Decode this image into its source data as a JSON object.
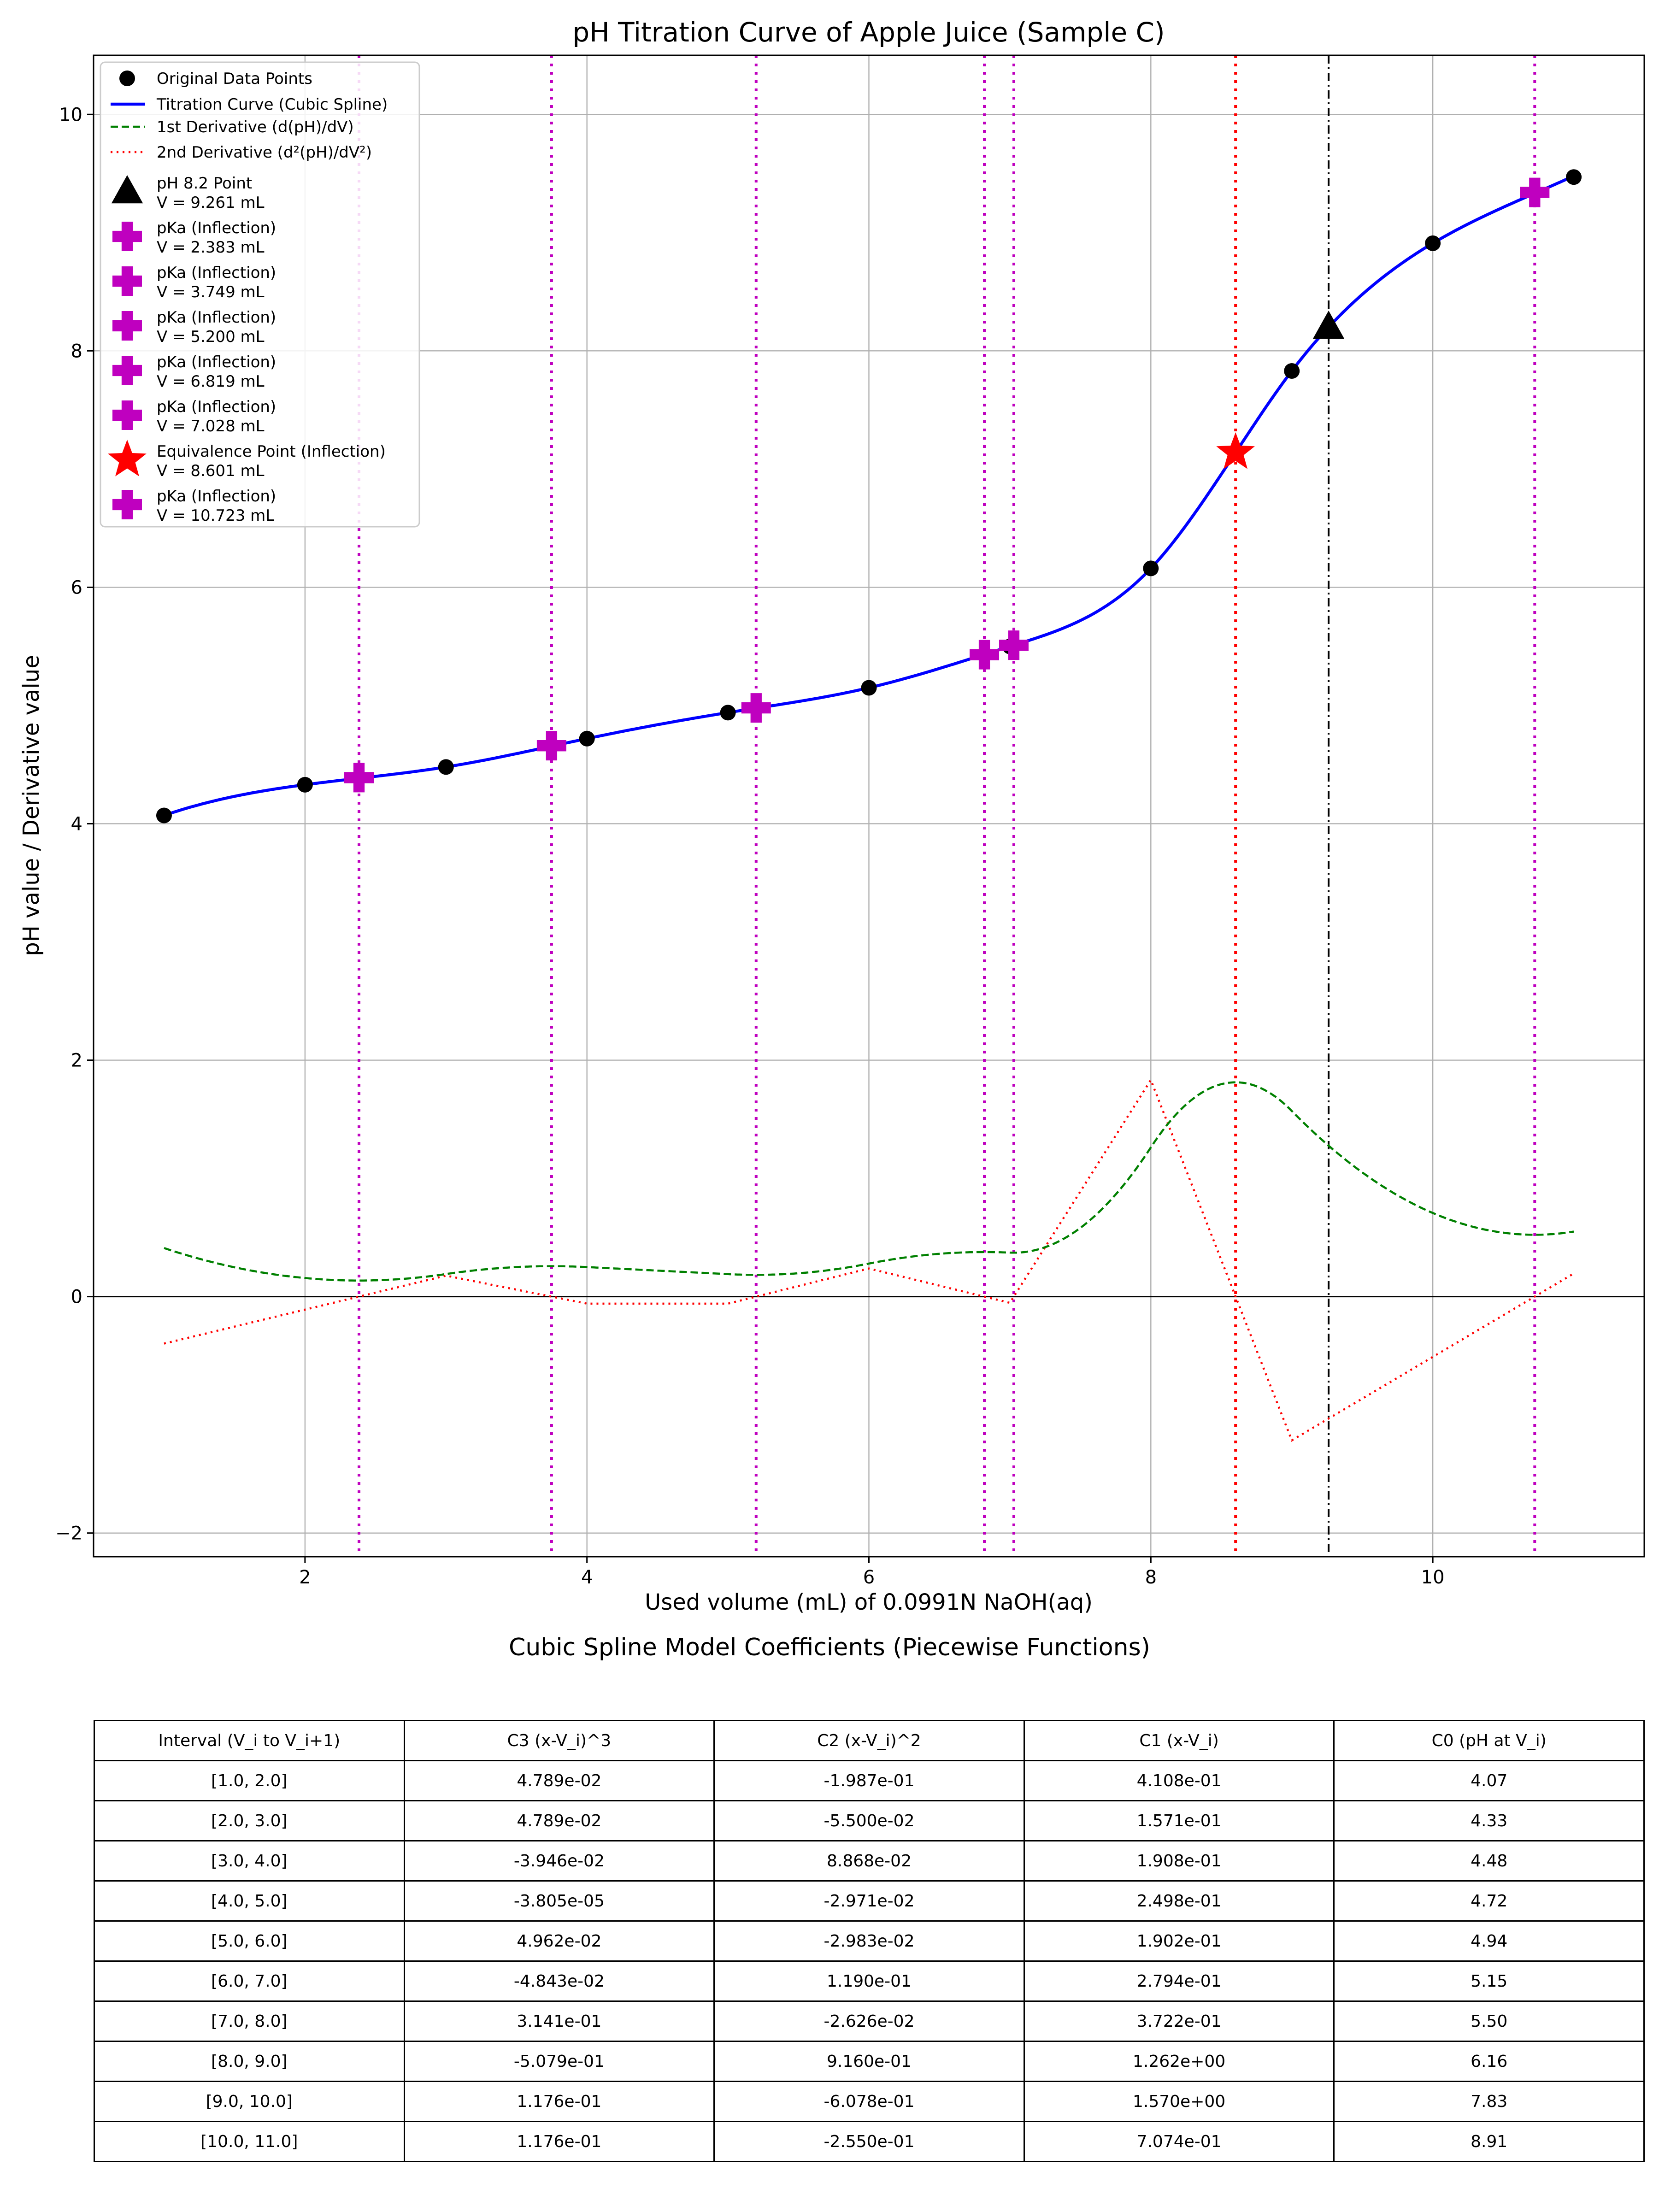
{
  "chart_data": {
    "type": "line",
    "title": "pH Titration Curve of Apple Juice (Sample C)",
    "xlabel": "Used volume (mL) of 0.0991N NaOH(aq)",
    "ylabel": "pH value / Derivative value",
    "xlim": [
      0.5,
      11.5
    ],
    "ylim": [
      -2.2,
      10.5
    ],
    "xticks": [
      2,
      4,
      6,
      8,
      10
    ],
    "yticks": [
      -2,
      0,
      2,
      4,
      6,
      8,
      10
    ],
    "ytick_labels": [
      "−2",
      "0",
      "2",
      "4",
      "6",
      "8",
      "10"
    ],
    "grid": true,
    "legend_position": "upper-left",
    "colors": {
      "data": "#000000",
      "spline": "#0000ff",
      "deriv1": "#008000",
      "deriv2": "#ff0000",
      "pka": "#bf00bf",
      "equivalence": "#ff0000",
      "ph82": "#000000"
    },
    "original_points": {
      "x": [
        1,
        2,
        3,
        4,
        5,
        6,
        7,
        8,
        9,
        10,
        11
      ],
      "y": [
        4.07,
        4.33,
        4.48,
        4.72,
        4.94,
        5.15,
        5.5,
        6.16,
        7.83,
        8.91,
        9.47
      ]
    },
    "series": [
      {
        "name": "Original Data Points",
        "type": "scatter",
        "marker": "circle"
      },
      {
        "name": "Titration Curve (Cubic Spline)",
        "type": "line",
        "style": "solid"
      },
      {
        "name": "1st Derivative (d(pH)/dV)",
        "type": "line",
        "style": "dashed"
      },
      {
        "name": "2nd Derivative (d²(pH)/dV²)",
        "type": "line",
        "style": "dotted"
      }
    ],
    "markers": [
      {
        "label": "pH 8.2 Point",
        "value_label": "V = 9.261 mL",
        "x": 9.261,
        "y": 8.2,
        "shape": "triangle",
        "line": "dashdot"
      },
      {
        "label": "pKa (Inflection)",
        "value_label": "V = 2.383 mL",
        "x": 2.383,
        "y": 4.39,
        "shape": "plus",
        "line": "dotted"
      },
      {
        "label": "pKa (Inflection)",
        "value_label": "V = 3.749 mL",
        "x": 3.749,
        "y": 4.66,
        "shape": "plus",
        "line": "dotted"
      },
      {
        "label": "pKa (Inflection)",
        "value_label": "V = 5.200 mL",
        "x": 5.2,
        "y": 4.98,
        "shape": "plus",
        "line": "dotted"
      },
      {
        "label": "pKa (Inflection)",
        "value_label": "V = 6.819 mL",
        "x": 6.819,
        "y": 5.43,
        "shape": "plus",
        "line": "dotted"
      },
      {
        "label": "pKa (Inflection)",
        "value_label": "V = 7.028 mL",
        "x": 7.028,
        "y": 5.51,
        "shape": "plus",
        "line": "dotted"
      },
      {
        "label": "Equivalence Point (Inflection)",
        "value_label": "V = 8.601 mL",
        "x": 8.601,
        "y": 7.14,
        "shape": "star",
        "line": "dotted"
      },
      {
        "label": "pKa (Inflection)",
        "value_label": "V = 10.723 mL",
        "x": 10.723,
        "y": 9.34,
        "shape": "plus",
        "line": "dotted"
      }
    ],
    "table": {
      "title": "Cubic Spline Model Coefficients (Piecewise Functions)",
      "headers": [
        "Interval (V_i to V_i+1)",
        "C3 (x-V_i)^3",
        "C2 (x-V_i)^2",
        "C1 (x-V_i)",
        "C0 (pH at V_i)"
      ],
      "rows": [
        [
          "[1.0, 2.0]",
          "4.789e-02",
          "-1.987e-01",
          "4.108e-01",
          "4.07"
        ],
        [
          "[2.0, 3.0]",
          "4.789e-02",
          "-5.500e-02",
          "1.571e-01",
          "4.33"
        ],
        [
          "[3.0, 4.0]",
          "-3.946e-02",
          "8.868e-02",
          "1.908e-01",
          "4.48"
        ],
        [
          "[4.0, 5.0]",
          "-3.805e-05",
          "-2.971e-02",
          "2.498e-01",
          "4.72"
        ],
        [
          "[5.0, 6.0]",
          "4.962e-02",
          "-2.983e-02",
          "1.902e-01",
          "4.94"
        ],
        [
          "[6.0, 7.0]",
          "-4.843e-02",
          "1.190e-01",
          "2.794e-01",
          "5.15"
        ],
        [
          "[7.0, 8.0]",
          "3.141e-01",
          "-2.626e-02",
          "3.722e-01",
          "5.50"
        ],
        [
          "[8.0, 9.0]",
          "-5.079e-01",
          "9.160e-01",
          "1.262e+00",
          "6.16"
        ],
        [
          "[9.0, 10.0]",
          "1.176e-01",
          "-6.078e-01",
          "1.570e+00",
          "7.83"
        ],
        [
          "[10.0, 11.0]",
          "1.176e-01",
          "-2.550e-01",
          "7.074e-01",
          "8.91"
        ]
      ]
    }
  }
}
